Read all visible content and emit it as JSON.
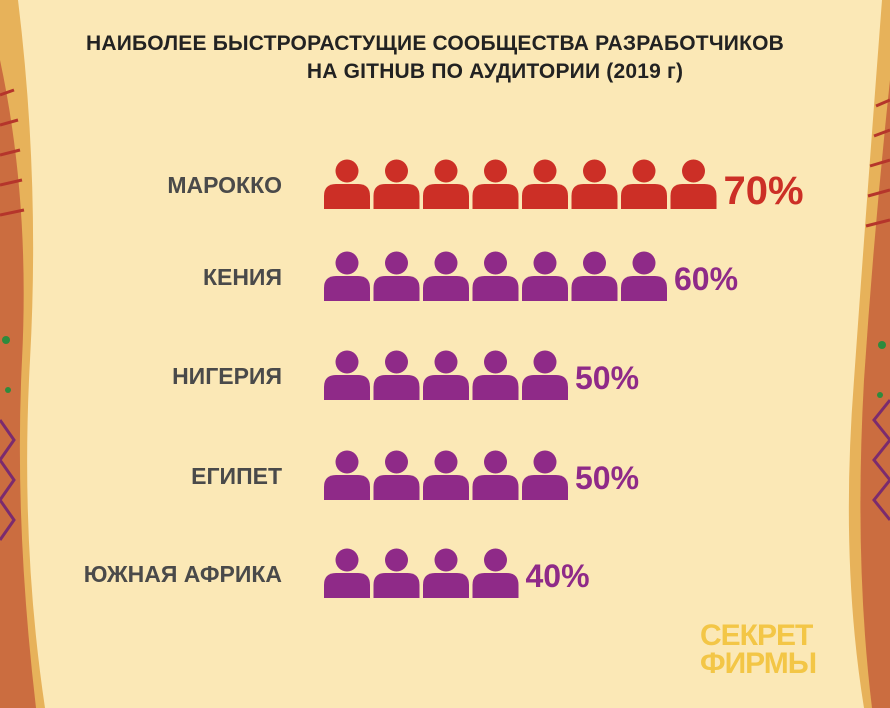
{
  "title": {
    "line1": "НАИБОЛЕЕ БЫСТРОРАСТУЩИЕ СООБЩЕСТВА РАЗРАБОТЧИКОВ",
    "line2": "НА GITHUB ПО АУДИТОРИИ (2019 г)"
  },
  "logo": {
    "line1": "СЕКРЕТ",
    "line2": "ФИРМЫ"
  },
  "colors": {
    "background": "#fbe8b6",
    "highlight": "#cc2f26",
    "primary": "#8f2a88",
    "label": "#4a4a4a",
    "logo": "#f3c646"
  },
  "chart_data": {
    "type": "bar",
    "title": "НАИБОЛЕЕ БЫСТРОРАСТУЩИЕ СООБЩЕСТВА РАЗРАБОТЧИКОВ НА GITHUB ПО АУДИТОРИИ (2019 г)",
    "categories": [
      "МАРОККО",
      "КЕНИЯ",
      "НИГЕРИЯ",
      "ЕГИПЕТ",
      "ЮЖНАЯ АФРИКА"
    ],
    "values": [
      70,
      60,
      50,
      50,
      40
    ],
    "value_labels": [
      "70%",
      "60%",
      "50%",
      "50%",
      "40%"
    ],
    "unit": "%",
    "icons_per_row": [
      8,
      7,
      5,
      5,
      4
    ],
    "highlight_index": 0
  }
}
